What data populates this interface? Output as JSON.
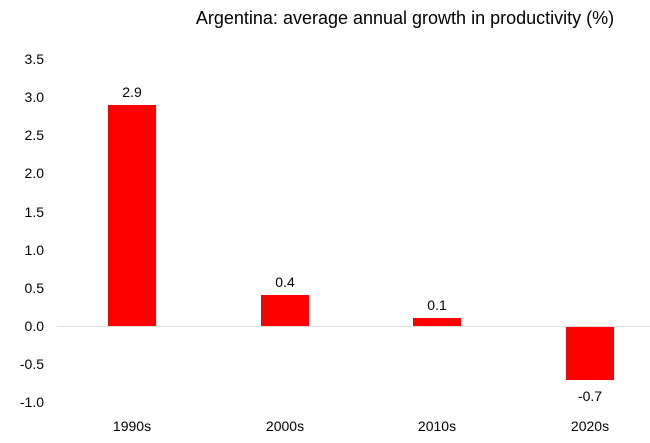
{
  "chart_data": {
    "type": "bar",
    "title": "Argentina: average annual growth in productivity (%)",
    "categories": [
      "1990s",
      "2000s",
      "2010s",
      "2020s"
    ],
    "values": [
      2.9,
      0.4,
      0.1,
      -0.7
    ],
    "data_labels": [
      "2.9",
      "0.4",
      "0.1",
      "-0.7"
    ],
    "xlabel": "",
    "ylabel": "",
    "ylim": [
      -1.0,
      3.5
    ],
    "y_tick_step": 0.5,
    "y_tick_labels": [
      "3.5",
      "3.0",
      "2.5",
      "2.0",
      "1.5",
      "1.0",
      "0.5",
      "0.0",
      "-0.5",
      "-1.0"
    ],
    "bar_color": "#ff0000",
    "axis_line_color": "#e0e0e0",
    "text_color": "#000000",
    "background_color": "#ffffff",
    "grid": "off",
    "legend": "none"
  }
}
